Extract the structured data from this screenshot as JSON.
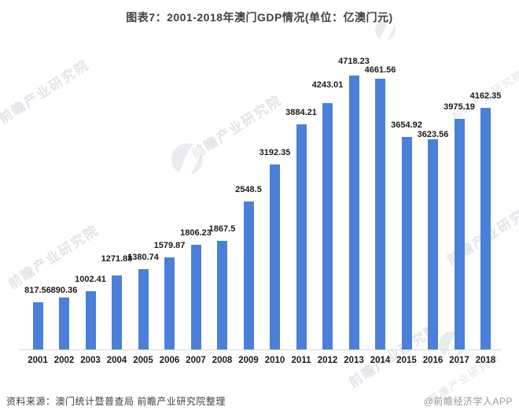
{
  "title": "图表7：2001-2018年澳门GDP情况(单位：亿澳门元)",
  "watermark": {
    "text": "前瞻产业研究院"
  },
  "footer": {
    "source": "资料来源：澳门统计暨普查局 前瞻产业研究院整理",
    "credit": "@前瞻经济学人APP"
  },
  "colors": {
    "bar": "#4A80D9",
    "axis_line": "#D9D9D9",
    "title_text": "#404040",
    "value_label_text": "#1A1A1A",
    "source_text": "#404040",
    "credit_text": "#999999",
    "watermark_text": "#B9BFC9"
  },
  "chart_data": {
    "type": "bar",
    "title": "图表7：2001-2018年澳门GDP情况(单位：亿澳门元)",
    "unit": "亿澳门元",
    "categories": [
      "2001",
      "2002",
      "2003",
      "2004",
      "2005",
      "2006",
      "2007",
      "2008",
      "2009",
      "2010",
      "2011",
      "2012",
      "2013",
      "2014",
      "2015",
      "2016",
      "2017",
      "2018"
    ],
    "values": [
      817.56,
      890.36,
      1002.41,
      1271.88,
      1380.74,
      1579.87,
      1806.23,
      1867.5,
      2548.5,
      3192.35,
      3884.21,
      4243.01,
      4718.23,
      4661.56,
      3654.92,
      3623.56,
      3975.19,
      4162.35
    ],
    "value_labels": [
      "817.56",
      "890.36",
      "1002.41",
      "1271.88",
      "1380.74",
      "1579.87",
      "1806.23",
      "1867.5",
      "2548.5",
      "3192.35",
      "3884.21",
      "4243.01",
      "4718.23",
      "4661.56",
      "3654.92",
      "3623.56",
      "3975.19",
      "4162.35"
    ],
    "xlabel": "",
    "ylabel": "",
    "ylim": [
      0,
      4718.23
    ],
    "grid": false,
    "legend": "none",
    "data_labels": true,
    "label_dy": [
      0,
      6,
      0,
      -6,
      0,
      0,
      0,
      0,
      0,
      0,
      0,
      -8,
      -3,
      4,
      0,
      9,
      0,
      0
    ]
  }
}
